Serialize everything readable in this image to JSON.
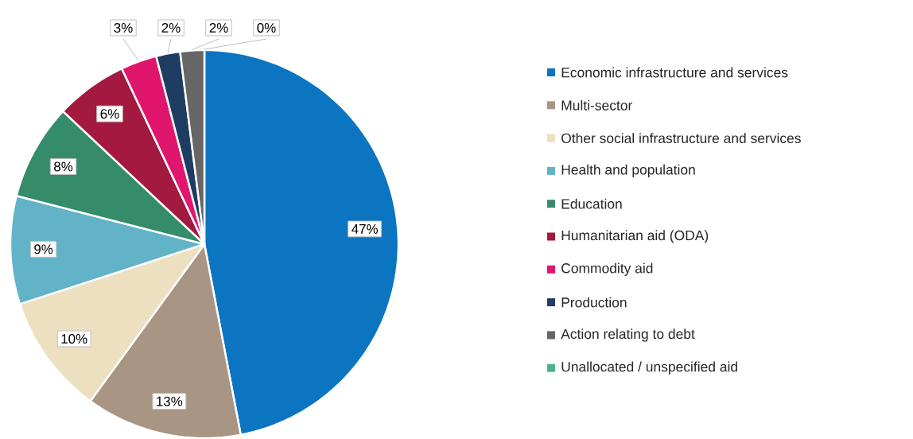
{
  "chart_data": {
    "type": "pie",
    "categories": [
      "Economic infrastructure and services",
      "Multi-sector",
      "Other social infrastructure and services",
      "Health and population",
      "Education",
      "Humanitarian aid (ODA)",
      "Commodity aid",
      "Production",
      "Action relating to debt",
      "Unallocated / unspecified aid"
    ],
    "values": [
      47,
      13,
      10,
      9,
      8,
      6,
      3,
      2,
      2,
      0
    ],
    "value_labels": [
      "47%",
      "13%",
      "10%",
      "9%",
      "8%",
      "6%",
      "3%",
      "2%",
      "2%",
      "0%"
    ],
    "colors": [
      "#0b75c2",
      "#a89583",
      "#ede0c0",
      "#62b3c7",
      "#358c6a",
      "#a3193f",
      "#e0166e",
      "#1f3d63",
      "#666666",
      "#4db38a"
    ],
    "legend": "right"
  }
}
